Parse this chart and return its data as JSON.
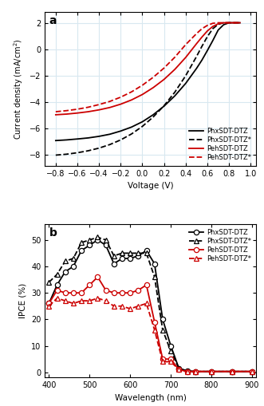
{
  "jv": {
    "voltage": [
      -0.8,
      -0.7,
      -0.6,
      -0.5,
      -0.4,
      -0.3,
      -0.2,
      -0.1,
      0.0,
      0.1,
      0.2,
      0.3,
      0.4,
      0.5,
      0.55,
      0.6,
      0.65,
      0.7,
      0.75,
      0.8,
      0.85,
      0.9
    ],
    "PhxSDT_DTZ": [
      -6.9,
      -6.85,
      -6.78,
      -6.7,
      -6.58,
      -6.42,
      -6.18,
      -5.88,
      -5.48,
      -4.95,
      -4.3,
      -3.52,
      -2.58,
      -1.45,
      -0.82,
      -0.1,
      0.65,
      1.45,
      1.85,
      2.0,
      2.0,
      2.0
    ],
    "PhxSDT_DTZ_star": [
      -8.0,
      -7.93,
      -7.82,
      -7.67,
      -7.47,
      -7.2,
      -6.85,
      -6.4,
      -5.83,
      -5.12,
      -4.27,
      -3.24,
      -2.0,
      -0.55,
      0.22,
      0.95,
      1.55,
      1.88,
      2.0,
      2.0,
      2.0,
      2.0
    ],
    "PehSDT_DTZ": [
      -4.95,
      -4.9,
      -4.82,
      -4.72,
      -4.58,
      -4.4,
      -4.15,
      -3.83,
      -3.42,
      -2.9,
      -2.28,
      -1.52,
      -0.62,
      0.42,
      0.92,
      1.38,
      1.72,
      1.92,
      2.0,
      2.0,
      2.0,
      2.0
    ],
    "PehSDT_DTZ_star": [
      -4.72,
      -4.64,
      -4.53,
      -4.38,
      -4.18,
      -3.94,
      -3.62,
      -3.22,
      -2.72,
      -2.12,
      -1.42,
      -0.6,
      0.35,
      1.18,
      1.55,
      1.8,
      1.96,
      2.0,
      2.0,
      2.0,
      2.0,
      2.0
    ]
  },
  "ipce": {
    "wavelength": [
      400,
      420,
      440,
      460,
      480,
      500,
      520,
      540,
      560,
      580,
      600,
      620,
      640,
      660,
      680,
      700,
      720,
      740,
      760,
      800,
      850,
      900
    ],
    "PhxSDT_DTZ": [
      26,
      33,
      38,
      40,
      46,
      48,
      50,
      48,
      41,
      43,
      43,
      44,
      46,
      41,
      20,
      10,
      1.5,
      0.5,
      0.3,
      0.3,
      0.3,
      0.3
    ],
    "PhxSDT_DTZ_star": [
      34,
      37,
      42,
      43,
      49,
      50,
      51,
      50,
      44,
      45,
      45,
      45,
      45,
      36,
      16,
      8,
      1.5,
      0.5,
      0.3,
      0.3,
      0.3,
      0.3
    ],
    "PehSDT_DTZ": [
      26,
      31,
      30,
      30,
      30,
      33,
      36,
      31,
      30,
      30,
      30,
      31,
      33,
      19,
      5,
      5,
      1.0,
      0.3,
      0.3,
      0.3,
      0.3,
      0.3
    ],
    "PehSDT_DTZ_star": [
      25,
      28,
      27,
      26,
      27,
      27,
      28,
      27,
      25,
      25,
      24,
      25,
      26,
      16,
      4,
      4,
      1.0,
      0.3,
      0.3,
      0.3,
      0.3,
      0.3
    ]
  },
  "colors": {
    "black": "#000000",
    "red": "#cc0000"
  },
  "grid_color": "#d8e8f0"
}
